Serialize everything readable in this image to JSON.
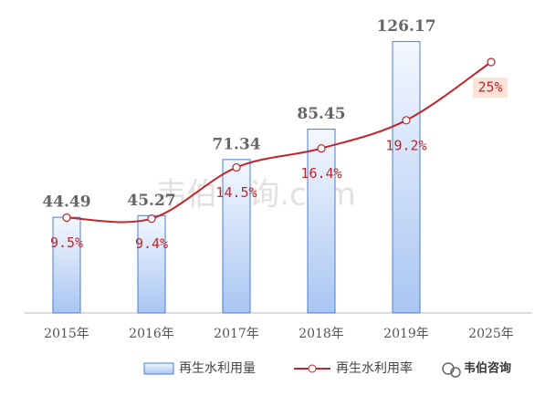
{
  "chart_data": {
    "type": "bar-line",
    "categories": [
      "2015年",
      "2016年",
      "2017年",
      "2018年",
      "2019年",
      "2025年"
    ],
    "series": [
      {
        "name": "再生水利用量",
        "type": "bar",
        "color": "#4a7fd4",
        "values": [
          44.49,
          45.27,
          71.34,
          85.45,
          126.17,
          null
        ]
      },
      {
        "name": "再生水利用率",
        "type": "line",
        "axis": "y2",
        "color": "#c0272d",
        "values": [
          9.5,
          9.4,
          14.5,
          16.4,
          19.2,
          25
        ],
        "value_labels": [
          "9.5%",
          "9.4%",
          "14.5%",
          "16.4%",
          "19.2%",
          "25%"
        ]
      }
    ],
    "ylim": [
      0,
      140
    ],
    "y2lim": [
      0,
      30
    ],
    "watermark": "韦伯咨询.com",
    "brand": "韦伯咨询"
  }
}
